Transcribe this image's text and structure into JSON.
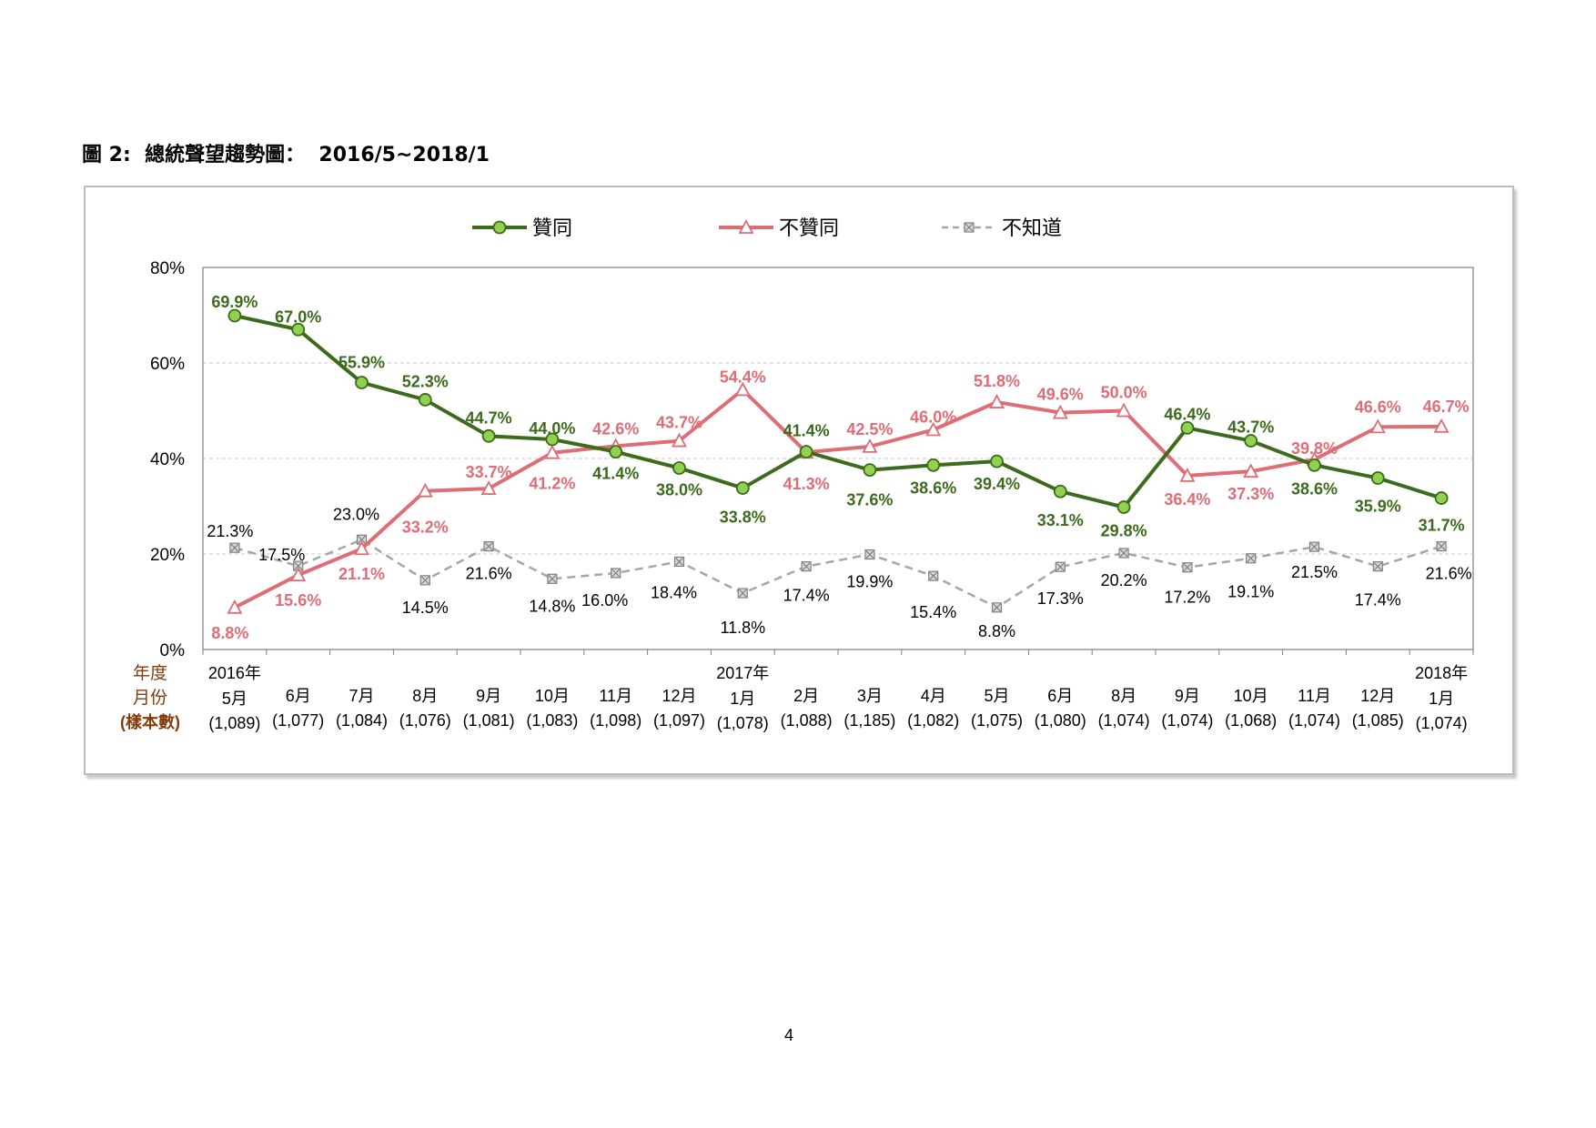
{
  "figure": {
    "title": "圖 2:  總統聲望趨勢圖：  2016/5~2018/1"
  },
  "page": {
    "number": "4"
  },
  "colors": {
    "approve": "#3b6b1b",
    "approve_fill": "#92d050",
    "disapprove": "#e06c75",
    "unknown": "#a6a6a6",
    "axis_header": "#833c0b",
    "grid": "#c8c8c8"
  },
  "chart_data": {
    "type": "line",
    "title": "",
    "legend": {
      "position": "top-center"
    },
    "ylim": [
      0,
      80
    ],
    "yticks": [
      "0%",
      "20%",
      "40%",
      "60%",
      "80%"
    ],
    "grid": true,
    "axis_header": {
      "year": "年度",
      "month": "月份",
      "sample": "(樣本數)"
    },
    "categories": [
      {
        "year": "2016年",
        "month": "5月",
        "sample": "(1,089)"
      },
      {
        "year": "",
        "month": "6月",
        "sample": "(1,077)"
      },
      {
        "year": "",
        "month": "7月",
        "sample": "(1,084)"
      },
      {
        "year": "",
        "month": "8月",
        "sample": "(1,076)"
      },
      {
        "year": "",
        "month": "9月",
        "sample": "(1,081)"
      },
      {
        "year": "",
        "month": "10月",
        "sample": "(1,083)"
      },
      {
        "year": "",
        "month": "11月",
        "sample": "(1,098)"
      },
      {
        "year": "",
        "month": "12月",
        "sample": "(1,097)"
      },
      {
        "year": "2017年",
        "month": "1月",
        "sample": "(1,078)"
      },
      {
        "year": "",
        "month": "2月",
        "sample": "(1,088)"
      },
      {
        "year": "",
        "month": "3月",
        "sample": "(1,185)"
      },
      {
        "year": "",
        "month": "4月",
        "sample": "(1,082)"
      },
      {
        "year": "",
        "month": "5月",
        "sample": "(1,075)"
      },
      {
        "year": "",
        "month": "6月",
        "sample": "(1,080)"
      },
      {
        "year": "",
        "month": "8月",
        "sample": "(1,074)"
      },
      {
        "year": "",
        "month": "9月",
        "sample": "(1,074)"
      },
      {
        "year": "",
        "month": "10月",
        "sample": "(1,068)"
      },
      {
        "year": "",
        "month": "11月",
        "sample": "(1,074)"
      },
      {
        "year": "",
        "month": "12月",
        "sample": "(1,085)"
      },
      {
        "year": "2018年",
        "month": "1月",
        "sample": "(1,074)"
      }
    ],
    "series": [
      {
        "key": "approve",
        "name": "贊同",
        "values": [
          69.9,
          67.0,
          55.9,
          52.3,
          44.7,
          44.0,
          41.4,
          38.0,
          33.8,
          41.4,
          37.6,
          38.6,
          39.4,
          33.1,
          29.8,
          46.4,
          43.7,
          38.6,
          35.9,
          31.7
        ],
        "labels": [
          "69.9%",
          "67.0%",
          "55.9%",
          "52.3%",
          "44.7%",
          "44.0%",
          "41.4%",
          "38.0%",
          "33.8%",
          "41.4%",
          "37.6%",
          "38.6%",
          "39.4%",
          "33.1%",
          "29.8%",
          "46.4%",
          "43.7%",
          "38.6%",
          "35.9%",
          "31.7%"
        ]
      },
      {
        "key": "disapprove",
        "name": "不贊同",
        "values": [
          8.8,
          15.6,
          21.1,
          33.2,
          33.7,
          41.2,
          42.6,
          43.7,
          54.4,
          41.3,
          42.5,
          46.0,
          51.8,
          49.6,
          50.0,
          36.4,
          37.3,
          39.8,
          46.6,
          46.7
        ],
        "labels": [
          "8.8%",
          "15.6%",
          "21.1%",
          "33.2%",
          "33.7%",
          "41.2%",
          "42.6%",
          "43.7%",
          "54.4%",
          "41.3%",
          "42.5%",
          "46.0%",
          "51.8%",
          "49.6%",
          "50.0%",
          "36.4%",
          "37.3%",
          "39.8%",
          "46.6%",
          "46.7%"
        ]
      },
      {
        "key": "unknown",
        "name": "不知道",
        "values": [
          21.3,
          17.5,
          23.0,
          14.5,
          21.6,
          14.8,
          16.0,
          18.4,
          11.8,
          17.4,
          19.9,
          15.4,
          8.8,
          17.3,
          20.2,
          17.2,
          19.1,
          21.5,
          17.4,
          21.6
        ],
        "labels": [
          "21.3%",
          "17.5%",
          "23.0%",
          "14.5%",
          "21.6%",
          "14.8%",
          "16.0%",
          "18.4%",
          "11.8%",
          "17.4%",
          "19.9%",
          "15.4%",
          "8.8%",
          "17.3%",
          "20.2%",
          "17.2%",
          "19.1%",
          "21.5%",
          "17.4%",
          "21.6%"
        ]
      }
    ]
  }
}
